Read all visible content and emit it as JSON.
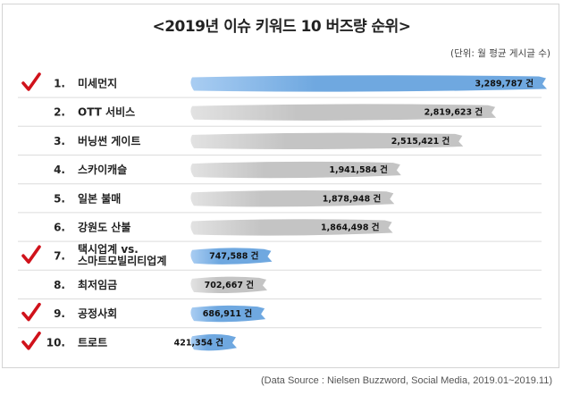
{
  "title": "<2019년 이슈 키워드 10 버즈량 순위>",
  "unit_note": "(단위: 월 평균 게시글 수)",
  "source": "(Data Source : Nielsen Buzzword, Social Media, 2019.01~2019.11)",
  "value_suffix": "건",
  "colors": {
    "highlight": "#6fa8e0",
    "normal": "#c4c4c4",
    "check": "#d0121b"
  },
  "icons": {
    "check": "red-checkmark-icon"
  },
  "chart_data": {
    "type": "bar",
    "orientation": "horizontal",
    "title": "<2019년 이슈 키워드 10 버즈량 순위>",
    "unit": "(단위: 월 평균 게시글 수)",
    "ranks": [
      "1.",
      "2.",
      "3.",
      "4.",
      "5.",
      "6.",
      "7.",
      "8.",
      "9.",
      "10."
    ],
    "categories": [
      [
        "미세먼지"
      ],
      [
        "OTT 서비스"
      ],
      [
        "버닝썬 게이트"
      ],
      [
        "스카이캐슬"
      ],
      [
        "일본 불매"
      ],
      [
        "강원도 산불"
      ],
      [
        "택시업계 vs.",
        "스마트모빌리티업계"
      ],
      [
        "최저임금"
      ],
      [
        "공정사회"
      ],
      [
        "트로트"
      ]
    ],
    "values": [
      3289787,
      2819623,
      2515421,
      1941584,
      1878948,
      1864498,
      747588,
      702667,
      686911,
      421354
    ],
    "value_labels": [
      "3,289,787",
      "2,819,623",
      "2,515,421",
      "1,941,584",
      "1,878,948",
      "1,864,498",
      "747,588",
      "702,667",
      "686,911",
      "421,354"
    ],
    "checked": [
      true,
      false,
      false,
      false,
      false,
      false,
      true,
      false,
      true,
      true
    ],
    "highlighted": [
      true,
      false,
      false,
      false,
      false,
      false,
      true,
      false,
      true,
      true
    ]
  }
}
